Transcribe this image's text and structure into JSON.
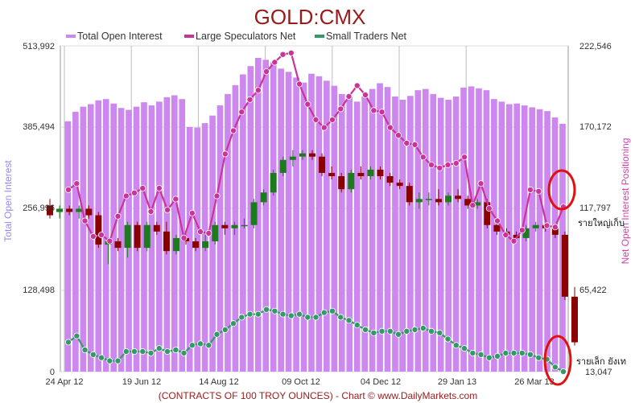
{
  "chart_data": {
    "type": "bar",
    "title": "GOLD:CMX",
    "footer": "(CONTRACTS OF 100 TROY OUNCES)  - Chart © www.DailyMarkets.com",
    "left_axis": {
      "label": "Total Open Interest",
      "ticks": [
        "513,992",
        "385,494",
        "256,996",
        "128,498",
        "0"
      ],
      "range": [
        0,
        513992
      ]
    },
    "right_axis": {
      "label": "Net Open Interest Positioning",
      "ticks": [
        "222,546",
        "170,172",
        "117,797",
        "65,422",
        "13,047"
      ],
      "range": [
        13047,
        222546
      ]
    },
    "x_tick_labels": [
      "24 Apr 12",
      "19 Jun 12",
      "14 Aug 12",
      "09 Oct 12",
      "04 Dec 12",
      "29 Jan 13",
      "26 Mar 13"
    ],
    "x_tick_index": [
      0,
      8,
      16,
      24,
      32,
      40,
      48
    ],
    "legend": [
      {
        "name": "Total Open Interest",
        "color": "#cc88ee"
      },
      {
        "name": "Large Speculators Net",
        "color": "#cc3399"
      },
      {
        "name": "Small Traders Net",
        "color": "#339966"
      }
    ],
    "series": [
      {
        "name": "Total Open Interest",
        "kind": "bar",
        "color": "#cc88ee",
        "values": [
          395000,
          410000,
          418000,
          422000,
          428000,
          430000,
          423000,
          416000,
          413000,
          418000,
          425000,
          420000,
          426000,
          433000,
          436000,
          430000,
          386000,
          385000,
          392000,
          404000,
          420000,
          438000,
          452000,
          469000,
          482000,
          495000,
          492000,
          488000,
          478000,
          473000,
          464000,
          456000,
          470000,
          466000,
          459000,
          451000,
          438000,
          433000,
          426000,
          434000,
          446000,
          455000,
          449000,
          434000,
          429000,
          435000,
          444000,
          446000,
          438000,
          432000,
          429000,
          434000,
          448000,
          450000,
          447000,
          444000,
          430000,
          426000,
          422000,
          423000,
          420000,
          417000,
          414000,
          411000,
          401000,
          391000
        ]
      },
      {
        "name": "Large Speculators Net",
        "kind": "line",
        "color": "#cc3399",
        "values": [
          130000,
          134000,
          110000,
          100000,
          101000,
          97000,
          113000,
          126000,
          128000,
          131000,
          116000,
          131000,
          117000,
          124000,
          99000,
          115000,
          103000,
          102000,
          126000,
          153000,
          168000,
          180000,
          188000,
          194000,
          206000,
          212000,
          217000,
          218000,
          198000,
          185000,
          175000,
          170000,
          175000,
          182000,
          190000,
          197000,
          191000,
          181000,
          180000,
          170000,
          165000,
          160000,
          159000,
          151000,
          146000,
          144000,
          146000,
          147000,
          151000,
          120000,
          134000,
          118000,
          110000,
          101000,
          97000,
          104000,
          130000,
          129000,
          107000,
          106000,
          119000
        ]
      },
      {
        "name": "Small Traders Net",
        "kind": "line",
        "color": "#339966",
        "values": [
          32000,
          36000,
          27000,
          24000,
          22000,
          20000,
          20000,
          26000,
          26000,
          26000,
          25000,
          28000,
          26000,
          27000,
          25000,
          30000,
          31000,
          30000,
          37000,
          40000,
          44000,
          48000,
          50000,
          50000,
          53000,
          52000,
          50000,
          49000,
          50000,
          48000,
          48000,
          51000,
          52000,
          48000,
          46000,
          43000,
          40000,
          38000,
          39000,
          39000,
          37000,
          39000,
          40000,
          41000,
          39000,
          38000,
          34000,
          30000,
          28000,
          25000,
          24000,
          22000,
          23000,
          25000,
          25000,
          25000,
          24000,
          22000,
          21000,
          16000,
          13047
        ]
      }
    ],
    "price_candles": {
      "name": "Gold price (candles)",
      "up_color": "#1e7a1e",
      "down_color": "#8b0000",
      "ohlc": [
        [
          0.51,
          0.53,
          0.47,
          0.48
        ],
        [
          0.49,
          0.51,
          0.47,
          0.5
        ],
        [
          0.5,
          0.51,
          0.48,
          0.49
        ],
        [
          0.49,
          0.51,
          0.47,
          0.5
        ],
        [
          0.5,
          0.51,
          0.47,
          0.48
        ],
        [
          0.48,
          0.49,
          0.38,
          0.39
        ],
        [
          0.39,
          0.41,
          0.33,
          0.4
        ],
        [
          0.4,
          0.41,
          0.37,
          0.38
        ],
        [
          0.38,
          0.46,
          0.35,
          0.45
        ],
        [
          0.45,
          0.46,
          0.37,
          0.38
        ],
        [
          0.38,
          0.46,
          0.37,
          0.45
        ],
        [
          0.45,
          0.46,
          0.42,
          0.43
        ],
        [
          0.43,
          0.46,
          0.36,
          0.37
        ],
        [
          0.37,
          0.42,
          0.36,
          0.41
        ],
        [
          0.41,
          0.43,
          0.39,
          0.4
        ],
        [
          0.4,
          0.41,
          0.37,
          0.38
        ],
        [
          0.38,
          0.42,
          0.37,
          0.4
        ],
        [
          0.4,
          0.46,
          0.39,
          0.45
        ],
        [
          0.45,
          0.46,
          0.42,
          0.44
        ],
        [
          0.44,
          0.46,
          0.42,
          0.45
        ],
        [
          0.45,
          0.47,
          0.44,
          0.45
        ],
        [
          0.45,
          0.53,
          0.44,
          0.52
        ],
        [
          0.52,
          0.56,
          0.51,
          0.55
        ],
        [
          0.55,
          0.62,
          0.54,
          0.61
        ],
        [
          0.61,
          0.66,
          0.6,
          0.65
        ],
        [
          0.65,
          0.68,
          0.63,
          0.66
        ],
        [
          0.66,
          0.68,
          0.65,
          0.67
        ],
        [
          0.67,
          0.68,
          0.65,
          0.66
        ],
        [
          0.66,
          0.67,
          0.6,
          0.61
        ],
        [
          0.61,
          0.63,
          0.59,
          0.6
        ],
        [
          0.6,
          0.61,
          0.55,
          0.56
        ],
        [
          0.56,
          0.62,
          0.55,
          0.61
        ],
        [
          0.61,
          0.63,
          0.59,
          0.6
        ],
        [
          0.6,
          0.63,
          0.59,
          0.62
        ],
        [
          0.62,
          0.63,
          0.59,
          0.6
        ],
        [
          0.6,
          0.61,
          0.57,
          0.58
        ],
        [
          0.58,
          0.59,
          0.56,
          0.57
        ],
        [
          0.57,
          0.58,
          0.51,
          0.52
        ],
        [
          0.52,
          0.55,
          0.5,
          0.53
        ],
        [
          0.53,
          0.55,
          0.51,
          0.53
        ],
        [
          0.53,
          0.56,
          0.51,
          0.52
        ],
        [
          0.52,
          0.55,
          0.51,
          0.54
        ],
        [
          0.54,
          0.56,
          0.52,
          0.53
        ],
        [
          0.53,
          0.54,
          0.5,
          0.51
        ],
        [
          0.51,
          0.53,
          0.5,
          0.52
        ],
        [
          0.52,
          0.53,
          0.44,
          0.45
        ],
        [
          0.45,
          0.47,
          0.42,
          0.43
        ],
        [
          0.43,
          0.44,
          0.41,
          0.42
        ],
        [
          0.42,
          0.43,
          0.4,
          0.41
        ],
        [
          0.41,
          0.45,
          0.4,
          0.44
        ],
        [
          0.44,
          0.46,
          0.43,
          0.45
        ],
        [
          0.45,
          0.46,
          0.43,
          0.44
        ],
        [
          0.44,
          0.45,
          0.41,
          0.42
        ],
        [
          0.42,
          0.43,
          0.22,
          0.23
        ],
        [
          0.23,
          0.26,
          0.08,
          0.09
        ]
      ]
    },
    "annotations": [
      {
        "text": "รายใหญ่เก็บ",
        "target": "Large Speculators Net"
      },
      {
        "text": "รายเล็ก ยังเท",
        "target": "Small Traders Net"
      }
    ],
    "grid": true,
    "legend_position": "top"
  }
}
